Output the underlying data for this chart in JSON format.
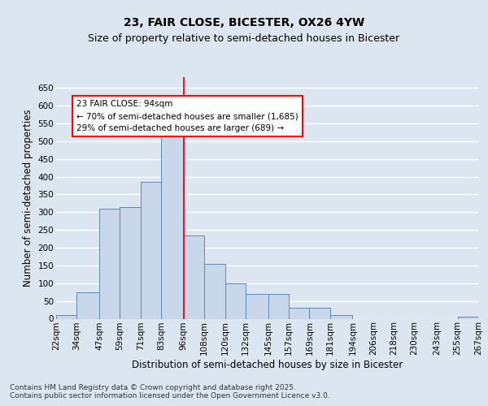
{
  "title_line1": "23, FAIR CLOSE, BICESTER, OX26 4YW",
  "title_line2": "Size of property relative to semi-detached houses in Bicester",
  "xlabel": "Distribution of semi-detached houses by size in Bicester",
  "ylabel": "Number of semi-detached properties",
  "bar_color": "#c8d8ea",
  "bar_edge_color": "#5a8ab8",
  "background_color": "#dce6f0",
  "fig_background": "#dce6f0",
  "grid_color": "#ffffff",
  "annotation_text": "23 FAIR CLOSE: 94sqm\n← 70% of semi-detached houses are smaller (1,685)\n29% of semi-detached houses are larger (689) →",
  "bins": [
    22,
    34,
    47,
    59,
    71,
    83,
    96,
    108,
    120,
    132,
    145,
    157,
    169,
    181,
    194,
    206,
    218,
    230,
    243,
    255,
    267
  ],
  "bin_labels": [
    "22sqm",
    "34sqm",
    "47sqm",
    "59sqm",
    "71sqm",
    "83sqm",
    "96sqm",
    "108sqm",
    "120sqm",
    "132sqm",
    "145sqm",
    "157sqm",
    "169sqm",
    "181sqm",
    "194sqm",
    "206sqm",
    "218sqm",
    "230sqm",
    "243sqm",
    "255sqm",
    "267sqm"
  ],
  "counts": [
    10,
    75,
    310,
    315,
    385,
    530,
    235,
    155,
    100,
    70,
    70,
    30,
    30,
    10,
    0,
    0,
    0,
    0,
    0,
    5
  ],
  "ylim": [
    0,
    680
  ],
  "yticks": [
    0,
    50,
    100,
    150,
    200,
    250,
    300,
    350,
    400,
    450,
    500,
    550,
    600,
    650
  ],
  "vline_x": 96,
  "footer": "Contains HM Land Registry data © Crown copyright and database right 2025.\nContains public sector information licensed under the Open Government Licence v3.0.",
  "title_fontsize": 10,
  "subtitle_fontsize": 9,
  "axis_label_fontsize": 8.5,
  "tick_fontsize": 7.5,
  "annotation_fontsize": 7.5,
  "footer_fontsize": 6.5
}
